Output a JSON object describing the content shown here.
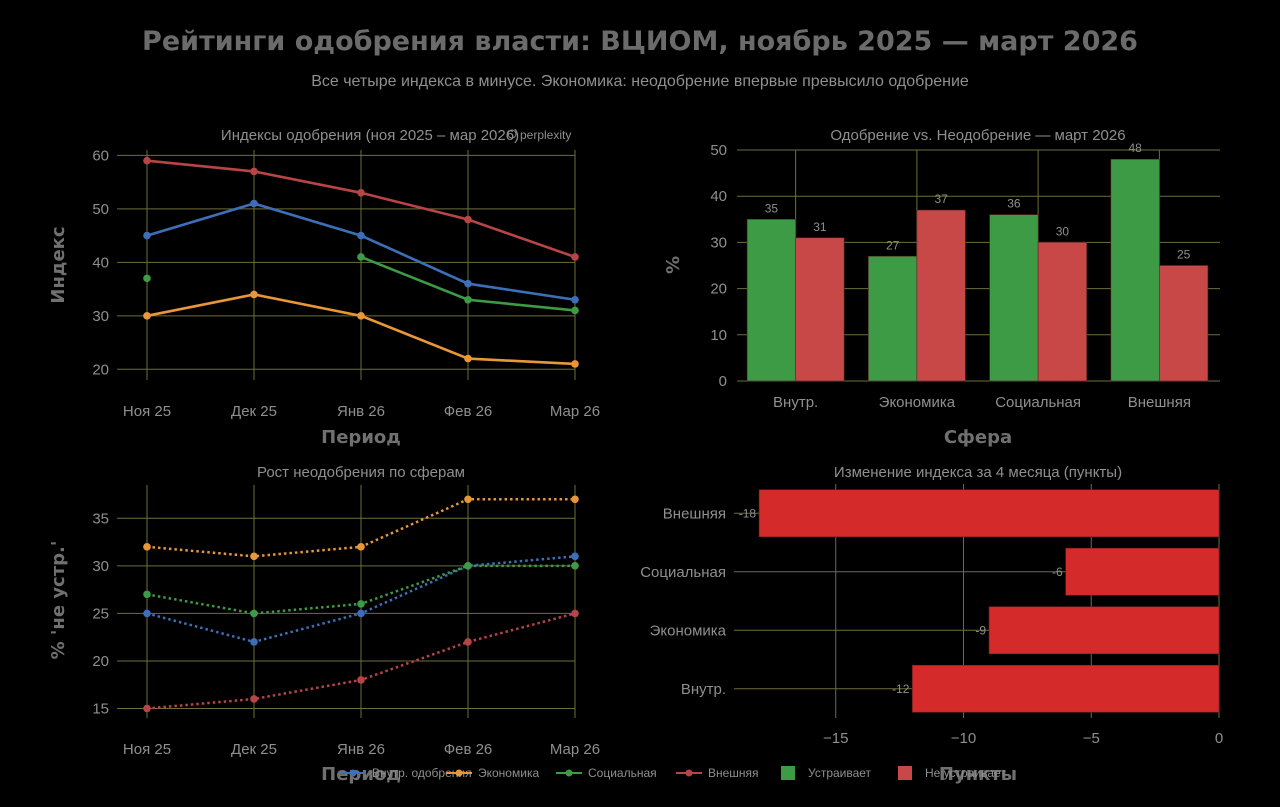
{
  "title": "Рейтинги одобрения власти: ВЦИОМ, ноябрь 2025 — март 2026",
  "subtitle": "Все четыре индекса в минусе. Экономика: неодобрение впервые превысило одобрение",
  "watermark": "perplexity",
  "colors": {
    "internal": "#3d6fb8",
    "economy": "#e8963a",
    "social": "#3d9a45",
    "external": "#b84545",
    "approve": "#3d9a45",
    "disapprove": "#c84848",
    "change": "#d42a2a",
    "grid": "#6e6e3a"
  },
  "legend": [
    {
      "label": "Внутр. одобрения",
      "type": "line",
      "color": "#3d6fb8"
    },
    {
      "label": "Экономика",
      "type": "line",
      "color": "#e8963a"
    },
    {
      "label": "Социальная",
      "type": "line",
      "color": "#3d9a45"
    },
    {
      "label": "Внешняя",
      "type": "line",
      "color": "#b84545"
    },
    {
      "label": "Устраивает",
      "type": "box",
      "color": "#3d9a45"
    },
    {
      "label": "Не устраивает",
      "type": "box",
      "color": "#c84848"
    }
  ],
  "chart_data": [
    {
      "type": "line",
      "title": "Индексы одобрения (ноя 2025 – мар 2026)",
      "xlabel": "Период",
      "ylabel": "Индекс",
      "categories": [
        "Ноя 25",
        "Дек 25",
        "Янв 26",
        "Фев 26",
        "Мар 26"
      ],
      "ylim": [
        18,
        61
      ],
      "yticks": [
        20,
        30,
        40,
        50,
        60
      ],
      "grid": true,
      "series": [
        {
          "key": "internal",
          "values": [
            45,
            51,
            45,
            36,
            33
          ]
        },
        {
          "key": "economy",
          "values": [
            30,
            34,
            30,
            22,
            21
          ]
        },
        {
          "key": "social",
          "values": [
            37,
            null,
            41,
            33,
            31
          ]
        },
        {
          "key": "external",
          "values": [
            59,
            57,
            53,
            48,
            41
          ]
        }
      ]
    },
    {
      "type": "bar",
      "title": "Одобрение vs. Неодобрение — март 2026",
      "xlabel": "Сфера",
      "ylabel": "%",
      "categories": [
        "Внутр.",
        "Экономика",
        "Социальная",
        "Внешняя"
      ],
      "ylim": [
        0,
        50
      ],
      "yticks": [
        0,
        10,
        20,
        30,
        40,
        50
      ],
      "grid": true,
      "series": [
        {
          "key": "approve",
          "values": [
            35,
            27,
            36,
            48
          ]
        },
        {
          "key": "disapprove",
          "values": [
            31,
            37,
            30,
            25
          ]
        }
      ]
    },
    {
      "type": "line",
      "title": "Рост неодобрения по сферам",
      "xlabel": "Период",
      "ylabel": "% 'не устр.'",
      "categories": [
        "Ноя 25",
        "Дек 25",
        "Янв 26",
        "Фев 26",
        "Мар 26"
      ],
      "ylim": [
        14,
        38.5
      ],
      "yticks": [
        15,
        20,
        25,
        30,
        35
      ],
      "grid": true,
      "dotted": true,
      "series": [
        {
          "key": "internal",
          "values": [
            25,
            22,
            25,
            30,
            31
          ]
        },
        {
          "key": "economy",
          "values": [
            32,
            31,
            32,
            37,
            37
          ]
        },
        {
          "key": "social",
          "values": [
            27,
            25,
            26,
            30,
            30
          ]
        },
        {
          "key": "external",
          "values": [
            15,
            16,
            18,
            22,
            25
          ]
        }
      ]
    },
    {
      "type": "bar",
      "orientation": "horizontal",
      "title": "Изменение индекса за 4 месяца (пункты)",
      "xlabel": "Пункты",
      "ylabel": "",
      "categories": [
        "Внешняя",
        "Социальная",
        "Экономика",
        "Внутр."
      ],
      "values": [
        -18,
        -6,
        -9,
        -12
      ],
      "value_labels": [
        "-18",
        "-6",
        "-9",
        "-12"
      ],
      "xlim": [
        -18.2,
        0
      ],
      "xticks": [
        -15,
        -10,
        -5,
        0
      ],
      "xtick_labels": [
        "−15",
        "−10",
        "−5",
        "0"
      ],
      "grid": true
    }
  ]
}
